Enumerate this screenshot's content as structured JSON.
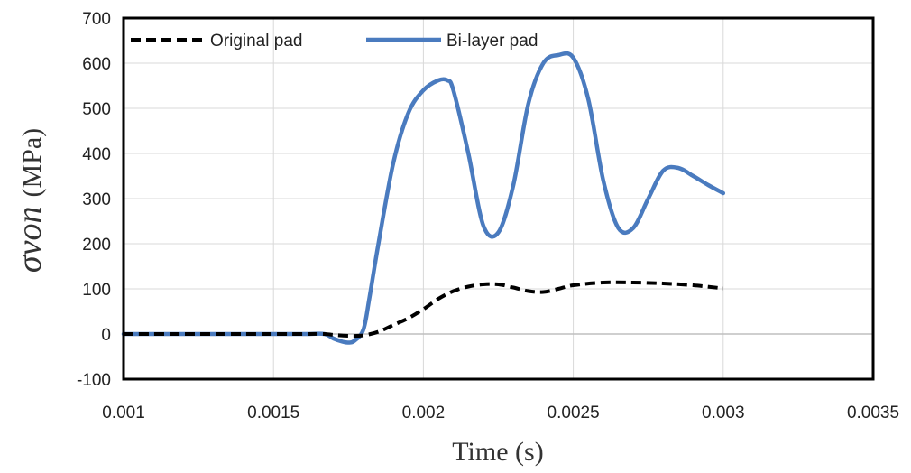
{
  "chart_data": {
    "type": "line",
    "xlabel": "Time (s)",
    "ylabel_symbol": "σvon",
    "ylabel_unit": "(MPa)",
    "xlim": [
      0.001,
      0.0035
    ],
    "ylim": [
      -100,
      700
    ],
    "xticks": [
      0.001,
      0.0015,
      0.002,
      0.0025,
      0.003,
      0.0035
    ],
    "xtick_labels": [
      "0.001",
      "0.0015",
      "0.002",
      "0.0025",
      "0.003",
      "0.0035"
    ],
    "yticks": [
      -100,
      0,
      100,
      200,
      300,
      400,
      500,
      600,
      700
    ],
    "ytick_labels": [
      "-100",
      "0",
      "100",
      "200",
      "300",
      "400",
      "500",
      "600",
      "700"
    ],
    "grid": true,
    "legend_position": "top-left",
    "series": [
      {
        "name": "Original pad",
        "color": "#000000",
        "style": "dashed",
        "x": [
          0.001,
          0.0012,
          0.0014,
          0.0016,
          0.00167,
          0.0017,
          0.00175,
          0.0018,
          0.00185,
          0.0019,
          0.00195,
          0.002,
          0.00205,
          0.0021,
          0.00215,
          0.0022,
          0.00225,
          0.0023,
          0.00235,
          0.0024,
          0.00245,
          0.0025,
          0.0026,
          0.0027,
          0.0028,
          0.0029,
          0.003
        ],
        "y": [
          0,
          0,
          0,
          0,
          0,
          -2,
          -4,
          -3,
          5,
          20,
          35,
          55,
          78,
          95,
          105,
          110,
          110,
          103,
          95,
          93,
          100,
          108,
          114,
          114,
          112,
          108,
          101
        ]
      },
      {
        "name": "Bi-layer pad",
        "color": "#4a7bbf",
        "style": "solid",
        "x": [
          0.001,
          0.0012,
          0.0014,
          0.0016,
          0.00167,
          0.0017,
          0.00173,
          0.00175,
          0.00177,
          0.0018,
          0.00182,
          0.00185,
          0.0019,
          0.00195,
          0.002,
          0.00205,
          0.00208,
          0.0021,
          0.00215,
          0.0022,
          0.00225,
          0.0023,
          0.00235,
          0.0024,
          0.00245,
          0.0025,
          0.00255,
          0.0026,
          0.00265,
          0.0027,
          0.00275,
          0.0028,
          0.00285,
          0.0029,
          0.00295,
          0.003
        ],
        "y": [
          0,
          0,
          0,
          0,
          0,
          -10,
          -17,
          -19,
          -15,
          10,
          80,
          200,
          380,
          490,
          540,
          562,
          562,
          540,
          400,
          240,
          225,
          330,
          510,
          600,
          618,
          612,
          520,
          340,
          235,
          235,
          300,
          362,
          368,
          350,
          330,
          312
        ]
      }
    ]
  }
}
